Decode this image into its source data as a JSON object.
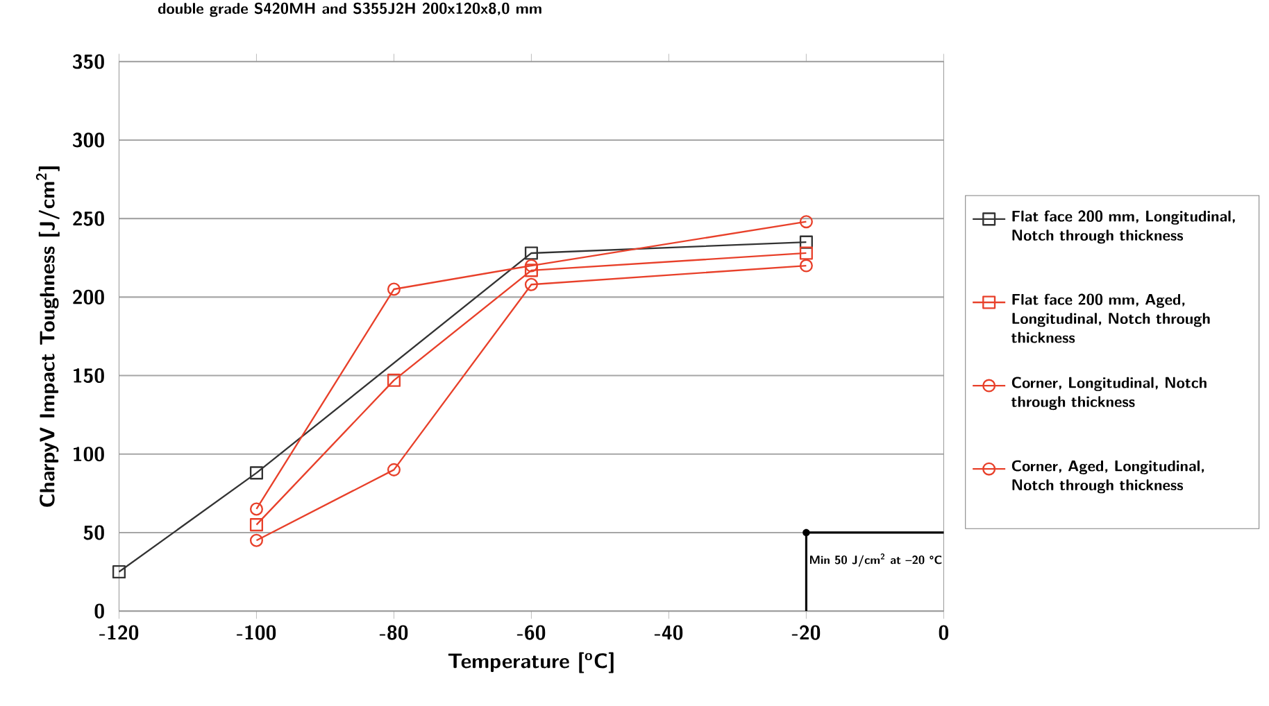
{
  "chart_data": {
    "type": "line",
    "title": "double grade S420MH and S355J2H 200x120x8,0 mm",
    "xlabel": "Temperature [$^{o}$C]",
    "ylabel": "CharpyV Impact Toughness [J/cm$^{2}$]",
    "series": [
      {
        "name": "Flat face 200 mm, Longitudinal, Notch through thickness",
        "color": "#333333",
        "marker": "square",
        "x": [
          -120,
          -100,
          -60,
          -20
        ],
        "values": [
          25,
          88,
          228,
          235
        ]
      },
      {
        "name": "Flat face 200 mm, Aged, Longitudinal, Notch through thickness",
        "color": "#e8402a",
        "marker": "square",
        "x": [
          -100,
          -80,
          -60,
          -20
        ],
        "values": [
          55,
          147,
          217,
          228
        ]
      },
      {
        "name": "Corner, Longitudinal, Notch through thickness",
        "color": "#e8402a",
        "marker": "circle",
        "x": [
          -100,
          -80,
          -60,
          -20
        ],
        "values": [
          65,
          205,
          220,
          248
        ]
      },
      {
        "name": "Corner, Aged, Longitudinal, Notch through thickness",
        "color": "#e8402a",
        "marker": "circle",
        "x": [
          -100,
          -80,
          -60,
          -20
        ],
        "values": [
          45,
          90,
          208,
          220
        ]
      }
    ],
    "xlim": [
      -120,
      0
    ],
    "xticks": [
      -120,
      -100,
      -80,
      -60,
      -40,
      -20,
      0
    ],
    "ylim": [
      0,
      350
    ],
    "yticks": [
      0,
      50,
      100,
      150,
      200,
      250,
      300,
      350
    ],
    "grid": "y",
    "legend": "right",
    "line_style": "solid",
    "annotations": [
      {
        "text": "Min 50 J/cm$^{2}$ at –20 °C",
        "x": -20,
        "y": 50
      }
    ]
  }
}
